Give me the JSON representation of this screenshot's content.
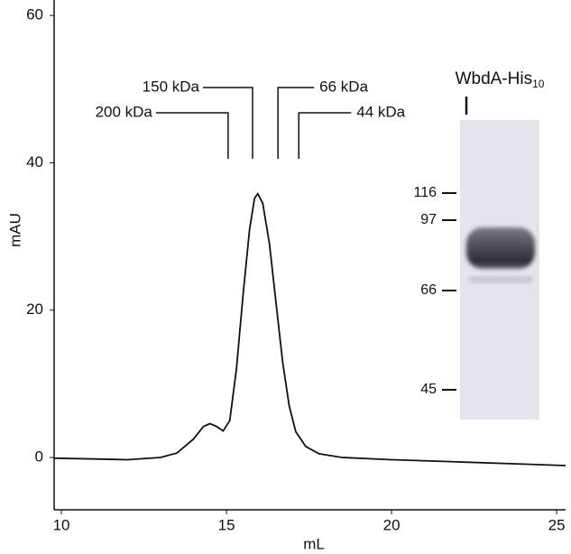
{
  "chart_data": {
    "type": "line",
    "x_label": "mL",
    "y_label": "mAU",
    "xlim": [
      9.78,
      25.27
    ],
    "ylim": [
      -7.1,
      62.1
    ],
    "xticks": [
      10,
      15,
      20,
      25
    ],
    "yticks": [
      0,
      20,
      40,
      60
    ],
    "color": "#111111",
    "x": [
      9.78,
      11,
      12,
      13,
      13.5,
      14,
      14.3,
      14.5,
      14.7,
      14.9,
      15.1,
      15.3,
      15.5,
      15.7,
      15.85,
      15.95,
      16.1,
      16.3,
      16.5,
      16.7,
      16.9,
      17.1,
      17.4,
      17.8,
      18.5,
      20,
      22,
      24,
      25.27
    ],
    "values": [
      -0.1,
      -0.2,
      -0.3,
      0,
      0.6,
      2.5,
      4.2,
      4.6,
      4.2,
      3.6,
      5,
      12,
      22,
      31,
      35.2,
      35.8,
      34.5,
      29,
      21,
      13,
      7,
      3.5,
      1.5,
      0.5,
      0,
      -0.3,
      -0.6,
      -0.9,
      -1.1
    ],
    "markers": [
      {
        "label": "200 kDa",
        "x": 15.05
      },
      {
        "label": "150 kDa",
        "x": 15.79
      },
      {
        "label": "66 kDa",
        "x": 16.56
      },
      {
        "label": "44 kDa",
        "x": 17.19
      }
    ]
  },
  "gel": {
    "title": "WbdA-His",
    "title_subscript": "10",
    "markers": [
      116,
      97,
      66,
      45
    ]
  }
}
